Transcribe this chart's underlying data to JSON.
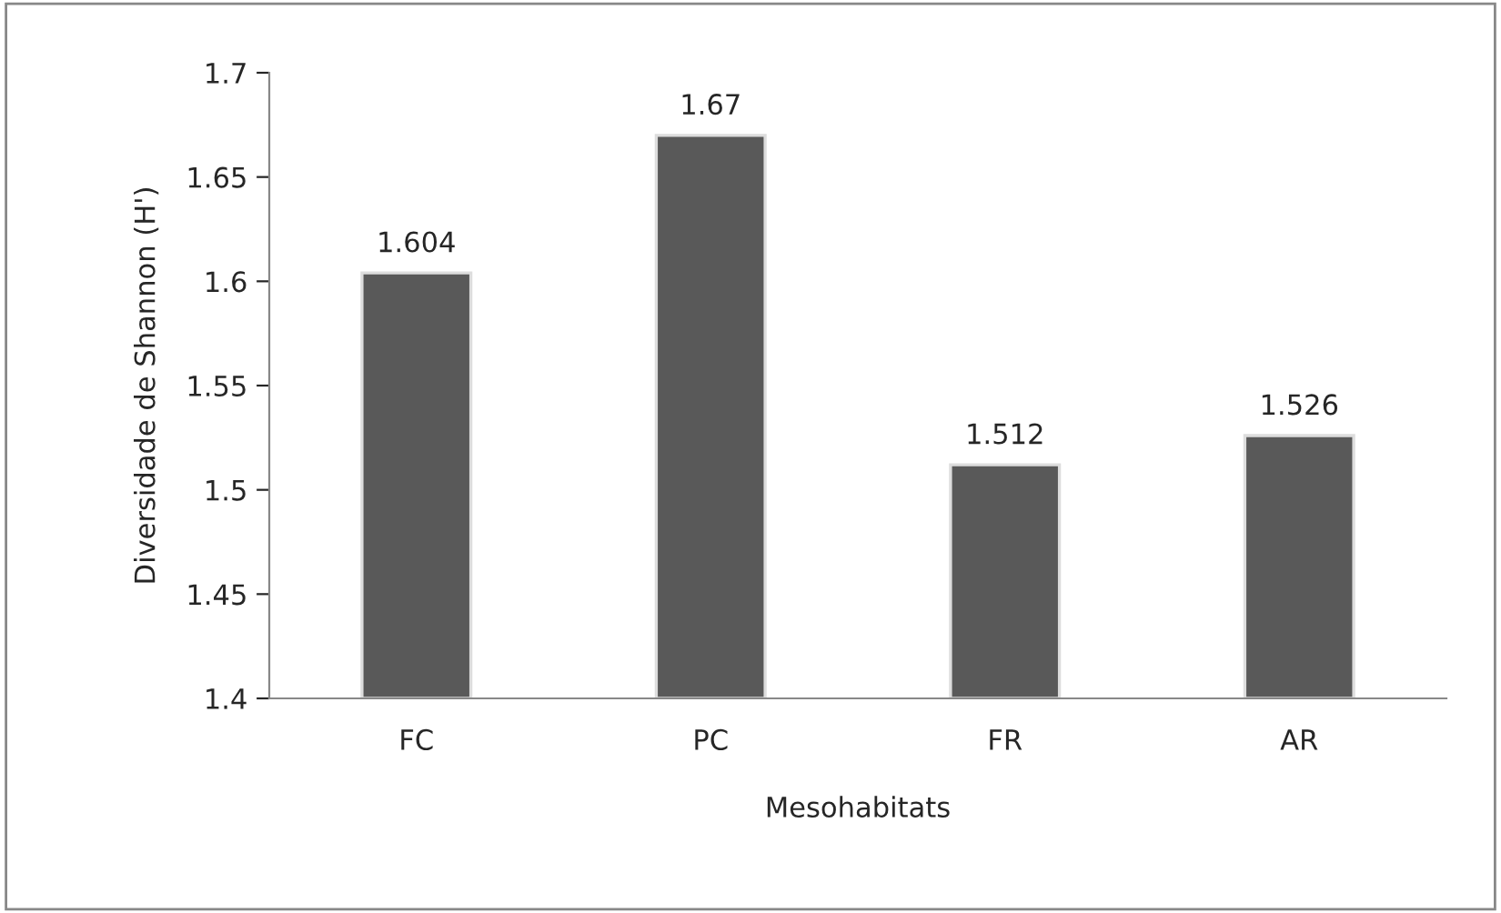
{
  "chart_data": {
    "type": "bar",
    "xlabel": "Mesohabitats",
    "ylabel": "Diversidade de Shannon (H')",
    "categories": [
      "FC",
      "PC",
      "FR",
      "AR"
    ],
    "values": [
      1.604,
      1.67,
      1.512,
      1.526
    ],
    "color": "#595959",
    "ylim": [
      1.4,
      1.7
    ],
    "yticks": [
      1.4,
      1.45,
      1.5,
      1.55,
      1.6,
      1.65,
      1.7
    ],
    "grid": false,
    "data_labels": true
  }
}
